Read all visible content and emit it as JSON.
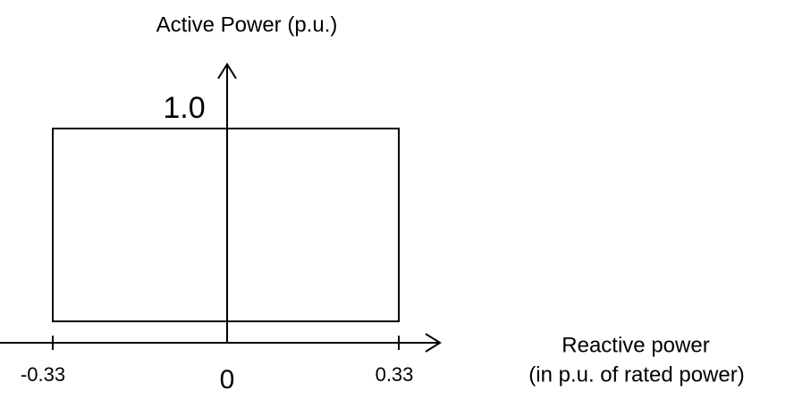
{
  "y_axis": {
    "label": "Active Power (p.u.)",
    "max_label": "1.0"
  },
  "x_axis": {
    "label_lines": [
      "Reactive power",
      "(in p.u. of rated power)"
    ],
    "tick_labels": [
      "-0.33",
      "0",
      "0.33"
    ]
  }
}
